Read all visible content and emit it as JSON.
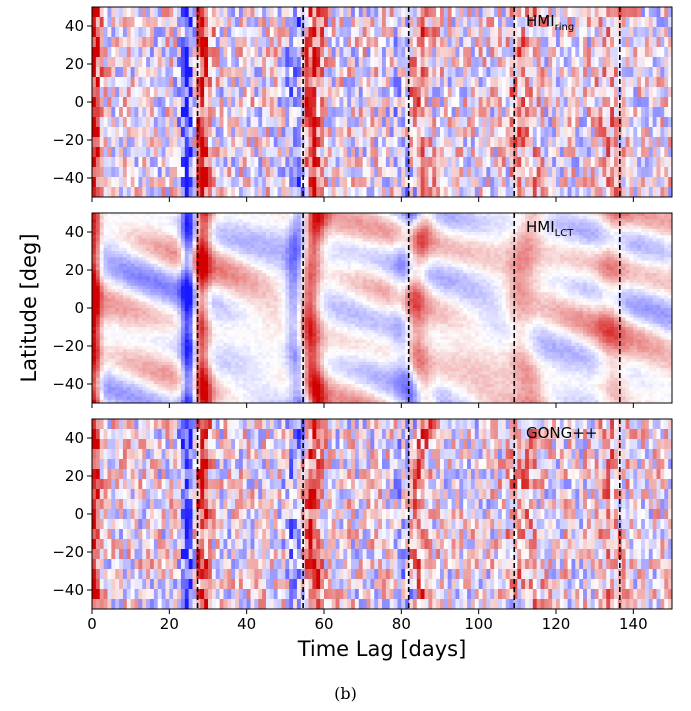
{
  "caption": "(b)",
  "chart_data": {
    "type": "heatmap",
    "xlabel": "Time Lag [days]",
    "ylabel": "Latitude [deg]",
    "xlim": [
      0,
      150
    ],
    "ylim": [
      -50,
      50
    ],
    "xticks": [
      0,
      20,
      40,
      60,
      80,
      100,
      120,
      140
    ],
    "yticks": [
      -40,
      -20,
      0,
      20,
      40
    ],
    "colormap": "bwr",
    "colors": {
      "positive": "#d40000",
      "negative": "#1a1aff",
      "zero": "#ffffff"
    },
    "dashed_lines_x": [
      27.3,
      54.6,
      81.9,
      109.2,
      136.5
    ],
    "panels": [
      {
        "label_main": "HMI",
        "label_sub": "ring",
        "texture": "blocky",
        "latitude_bins": 19,
        "lag_bins": 150
      },
      {
        "label_main": "HMI",
        "label_sub": "LCT",
        "texture": "smooth",
        "latitude_bins": 60,
        "lag_bins": 150
      },
      {
        "label_main": "GONG++",
        "label_sub": "",
        "texture": "blocky",
        "latitude_bins": 19,
        "lag_bins": 150
      }
    ],
    "features": [
      {
        "lag": 0.5,
        "strength": 1.0,
        "width": 1.2,
        "curvature": 0
      },
      {
        "lag": 25.0,
        "strength": -0.95,
        "width": 1.4,
        "curvature": 0
      },
      {
        "lag": 28.0,
        "strength": 0.85,
        "width": 1.6,
        "curvature": 1.0
      },
      {
        "lag": 52.5,
        "strength": -0.55,
        "width": 1.8,
        "curvature": 1.6
      },
      {
        "lag": 56.0,
        "strength": 0.8,
        "width": 2.0,
        "curvature": 2.2
      },
      {
        "lag": 80.5,
        "strength": -0.4,
        "width": 2.0,
        "curvature": 2.6
      },
      {
        "lag": 83.0,
        "strength": 0.55,
        "width": 2.2,
        "curvature": 3.2
      },
      {
        "lag": 110.5,
        "strength": 0.35,
        "width": 2.6,
        "curvature": 3.8
      },
      {
        "lag": 134.0,
        "strength": 0.3,
        "width": 2.5,
        "curvature": 1.5
      }
    ]
  }
}
